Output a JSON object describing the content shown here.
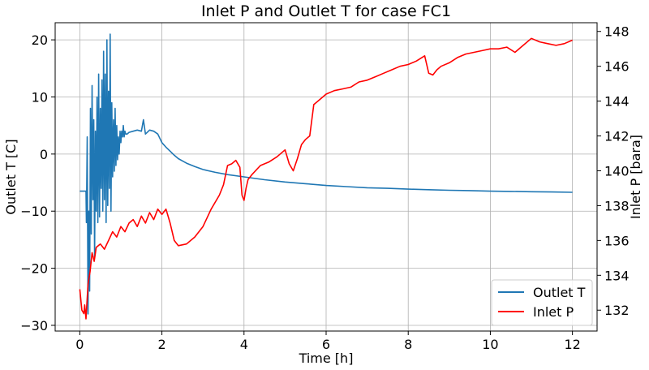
{
  "chart_data": {
    "type": "line",
    "title": "Inlet P and Outlet T for case FC1",
    "xlabel": "Time [h]",
    "ylabel_left": "Outlet T [C]",
    "ylabel_right": "Inlet P [bara]",
    "xlim": [
      -0.6,
      12.6
    ],
    "ylim_left": [
      -31,
      23
    ],
    "ylim_right": [
      130.8,
      148.5
    ],
    "xticks": [
      0,
      2,
      4,
      6,
      8,
      10,
      12
    ],
    "yticks_left": [
      -30,
      -20,
      -10,
      0,
      10,
      20
    ],
    "yticks_right": [
      132,
      134,
      136,
      138,
      140,
      142,
      144,
      146,
      148
    ],
    "grid": true,
    "legend_position": "lower-right",
    "series": [
      {
        "name": "Outlet T",
        "axis": "left",
        "color": "#1f77b4",
        "x": [
          0,
          0.15,
          0.16,
          0.18,
          0.2,
          0.22,
          0.24,
          0.26,
          0.28,
          0.3,
          0.32,
          0.34,
          0.36,
          0.38,
          0.4,
          0.42,
          0.44,
          0.46,
          0.48,
          0.5,
          0.52,
          0.54,
          0.56,
          0.58,
          0.6,
          0.62,
          0.64,
          0.66,
          0.68,
          0.7,
          0.72,
          0.74,
          0.76,
          0.78,
          0.8,
          0.82,
          0.84,
          0.86,
          0.88,
          0.9,
          0.92,
          0.94,
          0.96,
          0.98,
          1.0,
          1.02,
          1.04,
          1.06,
          1.08,
          1.1,
          1.12,
          1.15,
          1.2,
          1.3,
          1.4,
          1.5,
          1.55,
          1.6,
          1.7,
          1.8,
          1.9,
          2.0,
          2.1,
          2.2,
          2.3,
          2.4,
          2.5,
          2.6,
          2.8,
          3.0,
          3.3,
          3.6,
          4.0,
          4.5,
          5.0,
          5.5,
          6.0,
          6.5,
          7.0,
          7.5,
          8.0,
          8.5,
          9.0,
          9.5,
          10.0,
          10.5,
          11.0,
          11.5,
          12.0
        ],
        "values": [
          -6.5,
          -6.5,
          -12,
          3,
          -28,
          -10,
          -24,
          8,
          -14,
          12,
          -8,
          6,
          -18,
          4,
          -10,
          10,
          -12,
          14,
          -11,
          8,
          -6,
          13,
          -10,
          18,
          -8,
          14,
          -12,
          20,
          -9,
          11,
          -6,
          21,
          -10,
          9,
          -4,
          6,
          -3,
          8,
          -2,
          5,
          -1,
          3,
          0,
          4,
          2,
          4,
          3,
          5,
          3,
          4,
          3.5,
          3.5,
          3.8,
          4.0,
          4.2,
          4.0,
          6,
          3.5,
          4.2,
          4.0,
          3.5,
          2.0,
          1.2,
          0.5,
          -0.2,
          -0.8,
          -1.2,
          -1.6,
          -2.2,
          -2.7,
          -3.2,
          -3.6,
          -4.0,
          -4.5,
          -4.9,
          -5.2,
          -5.5,
          -5.7,
          -5.9,
          -6.0,
          -6.15,
          -6.25,
          -6.35,
          -6.4,
          -6.5,
          -6.55,
          -6.6,
          -6.65,
          -6.7
        ]
      },
      {
        "name": "Inlet P",
        "axis": "right",
        "color": "#ff0000",
        "x": [
          0,
          0.05,
          0.1,
          0.12,
          0.15,
          0.2,
          0.25,
          0.3,
          0.35,
          0.4,
          0.5,
          0.6,
          0.7,
          0.8,
          0.9,
          1.0,
          1.1,
          1.2,
          1.3,
          1.4,
          1.5,
          1.6,
          1.7,
          1.8,
          1.9,
          2.0,
          2.1,
          2.2,
          2.3,
          2.4,
          2.6,
          2.8,
          3.0,
          3.2,
          3.4,
          3.5,
          3.6,
          3.7,
          3.8,
          3.9,
          3.95,
          4.0,
          4.05,
          4.1,
          4.2,
          4.4,
          4.6,
          4.8,
          5.0,
          5.1,
          5.2,
          5.3,
          5.4,
          5.5,
          5.6,
          5.7,
          5.8,
          6.0,
          6.2,
          6.4,
          6.6,
          6.8,
          7.0,
          7.2,
          7.4,
          7.6,
          7.8,
          8.0,
          8.2,
          8.4,
          8.5,
          8.6,
          8.7,
          8.8,
          9.0,
          9.2,
          9.4,
          9.6,
          9.8,
          10.0,
          10.2,
          10.4,
          10.6,
          10.8,
          11.0,
          11.2,
          11.4,
          11.6,
          11.8,
          12.0
        ],
        "values": [
          133.2,
          132.0,
          131.8,
          132.3,
          131.5,
          133.5,
          134.2,
          135.3,
          134.8,
          135.6,
          135.8,
          135.5,
          136.0,
          136.5,
          136.2,
          136.8,
          136.5,
          137.0,
          137.2,
          136.8,
          137.4,
          137.0,
          137.6,
          137.2,
          137.8,
          137.5,
          137.8,
          137.0,
          136.0,
          135.7,
          135.8,
          136.2,
          136.8,
          137.8,
          138.6,
          139.2,
          140.3,
          140.4,
          140.6,
          140.2,
          138.6,
          138.3,
          139.0,
          139.5,
          139.8,
          140.3,
          140.5,
          140.8,
          141.2,
          140.4,
          140.0,
          140.7,
          141.5,
          141.8,
          142.0,
          143.8,
          144.0,
          144.4,
          144.6,
          144.7,
          144.8,
          145.1,
          145.2,
          145.4,
          145.6,
          145.8,
          146.0,
          146.1,
          146.3,
          146.6,
          145.6,
          145.5,
          145.8,
          146.0,
          146.2,
          146.5,
          146.7,
          146.8,
          146.9,
          147.0,
          147.0,
          147.1,
          146.8,
          147.2,
          147.6,
          147.4,
          147.3,
          147.2,
          147.3,
          147.5
        ]
      }
    ]
  }
}
